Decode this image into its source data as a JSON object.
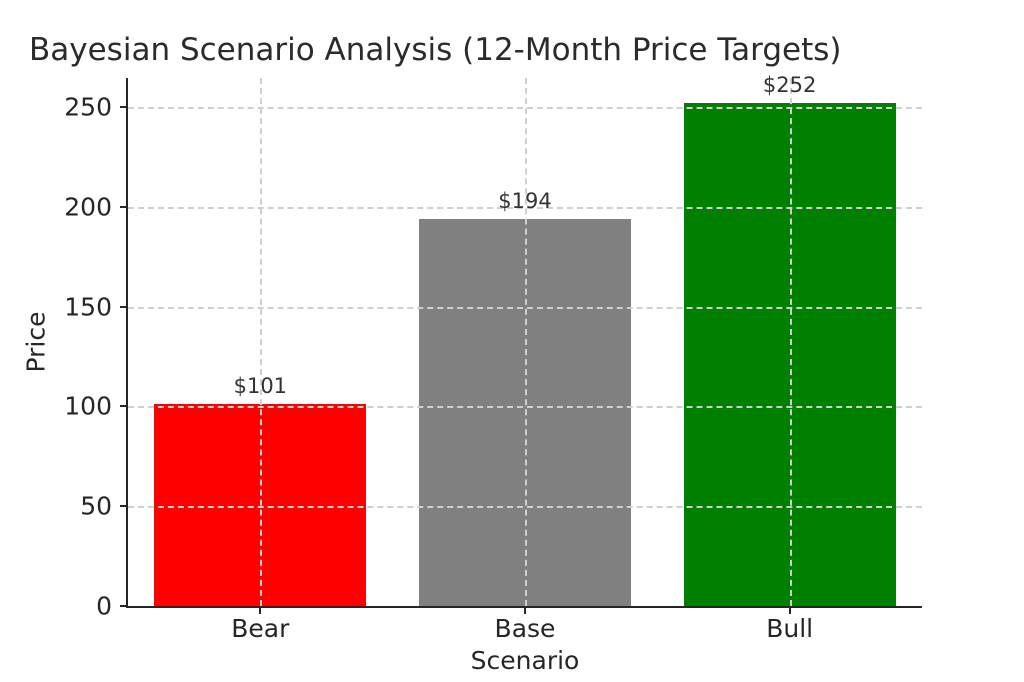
{
  "chart_data": {
    "type": "bar",
    "title": "Bayesian Scenario Analysis (12-Month Price Targets)",
    "xlabel": "Scenario",
    "ylabel": "Price",
    "categories": [
      "Bear",
      "Base",
      "Bull"
    ],
    "values": [
      101,
      194,
      252
    ],
    "value_labels": [
      "$101",
      "$194",
      "$252"
    ],
    "bar_colors": [
      "#ff0000",
      "#808080",
      "#008000"
    ],
    "yticks": [
      0,
      50,
      100,
      150,
      200,
      250
    ],
    "ylim": [
      0,
      264.6
    ],
    "bar_width_fraction": 0.8,
    "grid": true,
    "grid_style": "dashed",
    "grid_above_bars": true,
    "legend": "none",
    "colors": {
      "grid": "#cfcfcf",
      "spine": "#262626",
      "text": "#262626",
      "background": "#ffffff"
    }
  }
}
